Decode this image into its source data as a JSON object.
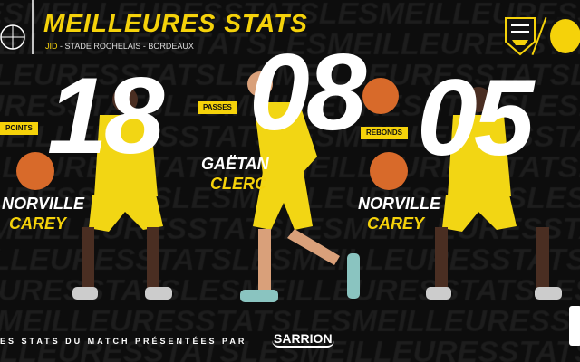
{
  "header": {
    "title": "MEILLEURES STATS",
    "competition": "JID",
    "match": " - STADE ROCHELAIS - BORDEAUX"
  },
  "background_text": "LESMEILLEURESSTATS",
  "logos": {
    "home": "STADE ROCHELAIS",
    "away": "JSA"
  },
  "stats": [
    {
      "value": "18",
      "label": "POINTS",
      "first_name": "NORVILLE",
      "last_name": "CAREY"
    },
    {
      "value": "08",
      "label": "PASSES",
      "first_name": "GAËTAN",
      "last_name": "CLERC"
    },
    {
      "value": "05",
      "label": "REBONDS",
      "first_name": "NORVILLE",
      "last_name": "CAREY"
    }
  ],
  "footer": {
    "text": "ES STATS DU MATCH PRÉSENTÉES PAR",
    "sponsor": "SARRION"
  },
  "colors": {
    "accent": "#f5d20a",
    "background": "#0d0d0d"
  }
}
